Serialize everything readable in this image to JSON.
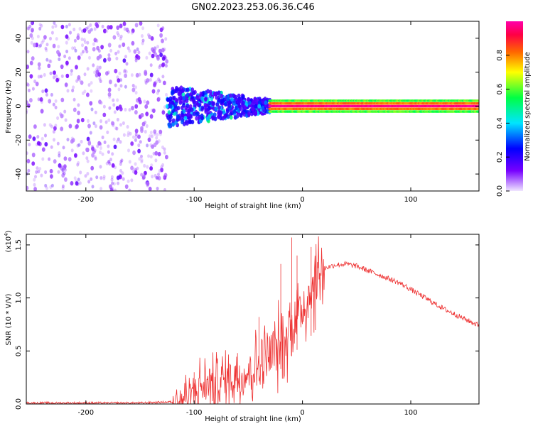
{
  "figure": {
    "title": "GN02.2023.253.06.36.C46"
  },
  "chart_data": [
    {
      "type": "heatmap",
      "xlabel": "Height of straight line (km)",
      "ylabel": "Frequency (Hz)",
      "xlim": [
        -255,
        163
      ],
      "ylim": [
        -50,
        50
      ],
      "xticks": [
        -200,
        -100,
        0,
        100
      ],
      "yticks": [
        -40,
        -20,
        0,
        20,
        40
      ],
      "colorbar": {
        "label": "Normalized spectral amplitude",
        "range": [
          0,
          1
        ],
        "ticks": [
          "0.0",
          "0.2",
          "0.4",
          "0.6",
          "0.8"
        ],
        "colormap": [
          "#f0e6ff",
          "#7700ff",
          "#0000ff",
          "#00e5ff",
          "#00ff44",
          "#ffff00",
          "#ff6600",
          "#ff0044",
          "#ff00aa"
        ]
      },
      "regions": [
        {
          "x_range": [
            -255,
            -125
          ],
          "freq_spread": [
            -50,
            50
          ],
          "amplitude": [
            0.05,
            0.2
          ]
        },
        {
          "x_range": [
            -125,
            -30
          ],
          "freq_spread": [
            -12,
            12
          ],
          "amplitude": [
            0.15,
            0.5
          ]
        },
        {
          "x_range": [
            -30,
            163
          ],
          "freq_spread": [
            -4,
            4
          ],
          "amplitude": [
            0.4,
            1.0
          ],
          "center_freq": 0
        }
      ]
    },
    {
      "type": "line",
      "xlabel": "Height of straight line (km)",
      "ylabel": "SNR (10 * V/V)",
      "y_scale_label": "(x10",
      "y_scale_exp": "4",
      "xlim": [
        -255,
        163
      ],
      "ylim": [
        0,
        1.6
      ],
      "xticks": [
        -200,
        -100,
        0,
        100
      ],
      "yticks": [
        "0.0",
        "0.5",
        "1.0",
        "1.5"
      ],
      "series": [
        {
          "color": "#ee3333",
          "x": [
            -255,
            -200,
            -150,
            -120,
            -110,
            -100,
            -90,
            -80,
            -70,
            -60,
            -50,
            -40,
            -30,
            -20,
            -15,
            -10,
            -5,
            0,
            5,
            10,
            15,
            20,
            30,
            40,
            50,
            60,
            70,
            80,
            90,
            100,
            110,
            120,
            130,
            140,
            150,
            163
          ],
          "y": [
            0.01,
            0.01,
            0.01,
            0.02,
            0.05,
            0.12,
            0.18,
            0.2,
            0.24,
            0.26,
            0.3,
            0.36,
            0.45,
            0.55,
            0.62,
            0.75,
            0.85,
            0.9,
            1.0,
            1.12,
            1.22,
            1.28,
            1.31,
            1.32,
            1.3,
            1.26,
            1.22,
            1.18,
            1.14,
            1.08,
            1.02,
            0.96,
            0.9,
            0.85,
            0.8,
            0.74
          ],
          "spikes": [
            {
              "x": -10,
              "y": 1.57
            },
            {
              "x": 8,
              "y": 1.48
            },
            {
              "x": -20,
              "y": 1.32
            },
            {
              "x": -5,
              "y": 1.4
            },
            {
              "x": 12,
              "y": 1.18
            },
            {
              "x": -40,
              "y": 0.82
            },
            {
              "x": -60,
              "y": 0.48
            },
            {
              "x": -100,
              "y": 0.3
            }
          ]
        }
      ]
    }
  ]
}
